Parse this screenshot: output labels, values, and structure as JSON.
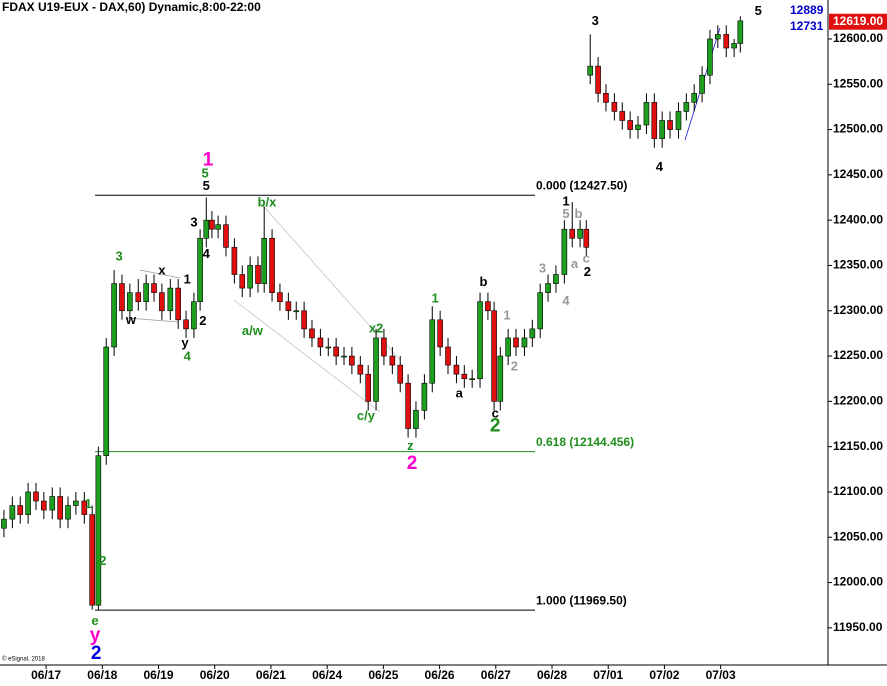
{
  "chart_data": {
    "type": "candlestick",
    "title": "FDAX U19-EUX - DAX,60) Dynamic,8:00-22:00",
    "corner_values": [
      "12889",
      "12731"
    ],
    "copyright": "© eSignal, 2018",
    "up_color": "#1e9e1e",
    "down_color": "#e01010",
    "xlim": [
      -0.82,
      13.91
    ],
    "ylim": [
      11909,
      12643
    ],
    "xticks": [
      {
        "value": 0,
        "label": "06/17"
      },
      {
        "value": 1,
        "label": "06/18"
      },
      {
        "value": 2,
        "label": "06/19"
      },
      {
        "value": 3,
        "label": "06/20"
      },
      {
        "value": 4,
        "label": "06/21"
      },
      {
        "value": 5,
        "label": "06/24"
      },
      {
        "value": 6,
        "label": "06/25"
      },
      {
        "value": 7,
        "label": "06/26"
      },
      {
        "value": 8,
        "label": "06/27"
      },
      {
        "value": 9,
        "label": "06/28"
      },
      {
        "value": 10,
        "label": "07/01"
      },
      {
        "value": 11,
        "label": "07/02"
      },
      {
        "value": 12,
        "label": "07/03"
      }
    ],
    "yticks": [
      {
        "value": 11950,
        "label": "11950.00"
      },
      {
        "value": 12000,
        "label": "12000.00"
      },
      {
        "value": 12050,
        "label": "12050.00"
      },
      {
        "value": 12100,
        "label": "12100.00"
      },
      {
        "value": 12150,
        "label": "12150.00"
      },
      {
        "value": 12200,
        "label": "12200.00"
      },
      {
        "value": 12250,
        "label": "12250.00"
      },
      {
        "value": 12300,
        "label": "12300.00"
      },
      {
        "value": 12350,
        "label": "12350.00"
      },
      {
        "value": 12400,
        "label": "12400.00"
      },
      {
        "value": 12450,
        "label": "12450.00"
      },
      {
        "value": 12500,
        "label": "12500.00"
      },
      {
        "value": 12550,
        "label": "12550.00"
      },
      {
        "value": 12600,
        "label": "12600.00"
      }
    ],
    "last_price": {
      "value": 12619,
      "label": "12619.00",
      "color": "#e01010"
    },
    "levels": [
      {
        "value": 12427.5,
        "label": "0.000 (12427.50)",
        "color": "#000000"
      },
      {
        "value": 12144.456,
        "label": "0.618 (12144.456)",
        "color": "#1e8e1e"
      },
      {
        "value": 11969.5,
        "label": "1.000 (11969.50)",
        "color": "#000000"
      }
    ],
    "x": [
      -0.75,
      -0.6,
      -0.46,
      -0.32,
      -0.18,
      -0.04,
      0.11,
      0.25,
      0.39,
      0.53,
      0.68,
      0.82,
      0.93,
      1.07,
      1.21,
      1.35,
      1.49,
      1.64,
      1.78,
      1.92,
      2.06,
      2.21,
      2.35,
      2.49,
      2.63,
      2.74,
      2.85,
      2.95,
      3.06,
      3.2,
      3.35,
      3.49,
      3.63,
      3.77,
      3.88,
      4.02,
      4.16,
      4.31,
      4.45,
      4.59,
      4.73,
      4.88,
      5.02,
      5.16,
      5.3,
      5.44,
      5.59,
      5.73,
      5.87,
      6.01,
      6.16,
      6.3,
      6.44,
      6.58,
      6.73,
      6.87,
      7.01,
      7.15,
      7.3,
      7.44,
      7.58,
      7.72,
      7.86,
      7.97,
      8.08,
      8.22,
      8.36,
      8.51,
      8.65,
      8.79,
      8.93,
      9.07,
      9.22,
      9.36,
      9.5,
      9.61,
      9.68,
      9.82,
      9.96,
      10.11,
      10.25,
      10.39,
      10.53,
      10.68,
      10.82,
      10.96,
      11.1,
      11.25,
      11.39,
      11.53,
      11.67,
      11.81,
      11.95,
      12.1,
      12.24,
      12.35
    ],
    "open": [
      12060,
      12070,
      12085,
      12075,
      12100,
      12090,
      12080,
      12095,
      12070,
      12085,
      12090,
      12075,
      11975,
      12140,
      12260,
      12330,
      12300,
      12320,
      12310,
      12330,
      12320,
      12300,
      12325,
      12290,
      12280,
      12310,
      12380,
      12400,
      12390,
      12395,
      12370,
      12340,
      12325,
      12350,
      12330,
      12380,
      12320,
      12310,
      12300,
      12300,
      12280,
      12270,
      12260,
      12260,
      12250,
      12250,
      12240,
      12230,
      12200,
      12270,
      12250,
      12240,
      12220,
      12170,
      12190,
      12220,
      12290,
      12260,
      12240,
      12230,
      12225,
      12225,
      12310,
      12300,
      12200,
      12250,
      12270,
      12260,
      12270,
      12280,
      12320,
      12330,
      12340,
      12390,
      12380,
      12390,
      12560,
      12570,
      12540,
      12530,
      12520,
      12510,
      12500,
      12505,
      12530,
      12490,
      12510,
      12500,
      12520,
      12530,
      12540,
      12560,
      12600,
      12605,
      12590,
      12595
    ],
    "high": [
      12080,
      12095,
      12095,
      12110,
      12110,
      12100,
      12105,
      12105,
      12095,
      12100,
      12100,
      12085,
      12150,
      12270,
      12345,
      12340,
      12330,
      12335,
      12340,
      12340,
      12330,
      12335,
      12335,
      12300,
      12320,
      12390,
      12425,
      12410,
      12405,
      12405,
      12380,
      12350,
      12360,
      12360,
      12415,
      12390,
      12330,
      12320,
      12310,
      12310,
      12290,
      12280,
      12270,
      12270,
      12260,
      12260,
      12250,
      12240,
      12280,
      12280,
      12260,
      12250,
      12230,
      12200,
      12230,
      12305,
      12300,
      12270,
      12250,
      12240,
      12235,
      12320,
      12320,
      12310,
      12260,
      12280,
      12280,
      12280,
      12290,
      12330,
      12340,
      12350,
      12400,
      12420,
      12400,
      12400,
      12605,
      12580,
      12550,
      12540,
      12530,
      12520,
      12515,
      12540,
      12540,
      12520,
      12520,
      12530,
      12540,
      12550,
      12570,
      12610,
      12615,
      12615,
      12600,
      12625
    ],
    "low": [
      12050,
      12060,
      12065,
      12065,
      12080,
      12070,
      12070,
      12060,
      12060,
      12075,
      12065,
      11970,
      11970,
      12130,
      12250,
      12290,
      12290,
      12300,
      12300,
      12310,
      12290,
      12290,
      12280,
      12270,
      12270,
      12300,
      12370,
      12380,
      12380,
      12360,
      12330,
      12315,
      12315,
      12320,
      12320,
      12310,
      12300,
      12290,
      12290,
      12270,
      12260,
      12250,
      12250,
      12240,
      12240,
      12230,
      12220,
      12190,
      12190,
      12240,
      12230,
      12210,
      12160,
      12160,
      12180,
      12210,
      12250,
      12230,
      12220,
      12215,
      12215,
      12215,
      12290,
      12190,
      12190,
      12240,
      12250,
      12250,
      12260,
      12270,
      12310,
      12320,
      12330,
      12370,
      12370,
      12360,
      12550,
      12530,
      12520,
      12510,
      12500,
      12490,
      12490,
      12495,
      12480,
      12480,
      12490,
      12490,
      12510,
      12520,
      12530,
      12550,
      12590,
      12580,
      12580,
      12585
    ],
    "close": [
      12070,
      12085,
      12075,
      12100,
      12090,
      12080,
      12095,
      12070,
      12085,
      12090,
      12075,
      11975,
      12140,
      12260,
      12330,
      12300,
      12320,
      12310,
      12330,
      12320,
      12300,
      12325,
      12290,
      12280,
      12310,
      12380,
      12400,
      12390,
      12395,
      12370,
      12340,
      12325,
      12350,
      12330,
      12380,
      12320,
      12310,
      12300,
      12300,
      12280,
      12270,
      12260,
      12260,
      12250,
      12250,
      12240,
      12230,
      12200,
      12270,
      12250,
      12240,
      12220,
      12170,
      12190,
      12220,
      12290,
      12260,
      12240,
      12230,
      12225,
      12225,
      12310,
      12300,
      12200,
      12250,
      12270,
      12260,
      12270,
      12280,
      12320,
      12330,
      12340,
      12390,
      12380,
      12390,
      12370,
      12570,
      12540,
      12530,
      12520,
      12510,
      12500,
      12505,
      12530,
      12490,
      12510,
      12500,
      12520,
      12530,
      12540,
      12560,
      12600,
      12605,
      12590,
      12595,
      12620
    ],
    "annotations": [
      {
        "text": "5",
        "x": 12.67,
        "y": 12630,
        "color": "#000000"
      },
      {
        "text": "3",
        "x": 9.77,
        "y": 12619,
        "color": "#000000"
      },
      {
        "text": "4",
        "x": 10.91,
        "y": 12458,
        "color": "#000000"
      },
      {
        "text": "1",
        "x": 2.88,
        "y": 12466,
        "color": "#ff00cc",
        "big": true
      },
      {
        "text": "5",
        "x": 2.83,
        "y": 12451,
        "color": "#1e8e1e"
      },
      {
        "text": "5",
        "x": 2.85,
        "y": 12437,
        "color": "#000000"
      },
      {
        "text": "3",
        "x": 1.3,
        "y": 12359,
        "color": "#1e8e1e"
      },
      {
        "text": "x",
        "x": 2.06,
        "y": 12344,
        "color": "#000000"
      },
      {
        "text": "w",
        "x": 1.51,
        "y": 12289,
        "color": "#000000"
      },
      {
        "text": "1",
        "x": 2.51,
        "y": 12334,
        "color": "#000000"
      },
      {
        "text": "2",
        "x": 2.79,
        "y": 12288,
        "color": "#000000"
      },
      {
        "text": "y",
        "x": 2.47,
        "y": 12264,
        "color": "#000000"
      },
      {
        "text": "4",
        "x": 2.51,
        "y": 12249,
        "color": "#1e8e1e"
      },
      {
        "text": "3",
        "x": 2.63,
        "y": 12397,
        "color": "#000000"
      },
      {
        "text": "4",
        "x": 2.85,
        "y": 12362,
        "color": "#000000"
      },
      {
        "text": "b/x",
        "x": 3.93,
        "y": 12419,
        "color": "#1e8e1e"
      },
      {
        "text": "a/w",
        "x": 3.67,
        "y": 12277,
        "color": "#1e8e1e"
      },
      {
        "text": "x2",
        "x": 5.87,
        "y": 12280,
        "color": "#1e8e1e"
      },
      {
        "text": "c/y",
        "x": 5.69,
        "y": 12183,
        "color": "#1e8e1e"
      },
      {
        "text": "z",
        "x": 6.48,
        "y": 12150,
        "color": "#1e8e1e"
      },
      {
        "text": "2",
        "x": 6.51,
        "y": 12131,
        "color": "#ff00cc",
        "big": true
      },
      {
        "text": "1",
        "x": 6.92,
        "y": 12313,
        "color": "#1e8e1e"
      },
      {
        "text": "b",
        "x": 7.78,
        "y": 12331,
        "color": "#000000"
      },
      {
        "text": "a",
        "x": 7.35,
        "y": 12208,
        "color": "#000000"
      },
      {
        "text": "c",
        "x": 7.99,
        "y": 12186,
        "color": "#000000"
      },
      {
        "text": "2",
        "x": 7.99,
        "y": 12172,
        "color": "#1e8e1e",
        "big": true
      },
      {
        "text": "1",
        "x": 8.2,
        "y": 12294,
        "color": "#999999"
      },
      {
        "text": "2",
        "x": 8.33,
        "y": 12238,
        "color": "#999999"
      },
      {
        "text": "3",
        "x": 8.83,
        "y": 12346,
        "color": "#999999"
      },
      {
        "text": "4",
        "x": 9.25,
        "y": 12310,
        "color": "#999999"
      },
      {
        "text": "a",
        "x": 9.4,
        "y": 12351,
        "color": "#999999"
      },
      {
        "text": "c",
        "x": 9.61,
        "y": 12357,
        "color": "#999999"
      },
      {
        "text": "2",
        "x": 9.63,
        "y": 12342,
        "color": "#000000"
      },
      {
        "text": "1",
        "x": 9.25,
        "y": 12420,
        "color": "#000000"
      },
      {
        "text": "5",
        "x": 9.25,
        "y": 12406,
        "color": "#999999"
      },
      {
        "text": "b",
        "x": 9.47,
        "y": 12406,
        "color": "#999999"
      },
      {
        "text": "1",
        "x": 0.75,
        "y": 12086,
        "color": "#1e8e1e"
      },
      {
        "text": "2",
        "x": 1.01,
        "y": 12023,
        "color": "#1e8e1e"
      },
      {
        "text": "e",
        "x": 0.87,
        "y": 11957,
        "color": "#1e8e1e"
      },
      {
        "text": "y",
        "x": 0.87,
        "y": 11941,
        "color": "#ff00cc",
        "big": true
      },
      {
        "text": "2",
        "x": 0.89,
        "y": 11921,
        "color": "#0000dd",
        "big": true
      }
    ]
  }
}
